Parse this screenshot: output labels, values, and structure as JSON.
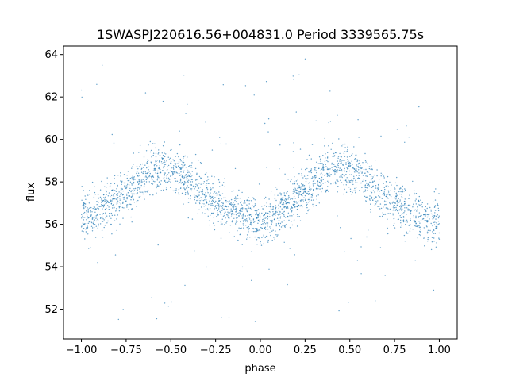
{
  "chart_data": {
    "type": "scatter",
    "title": "1SWASPJ220616.56+004831.0 Period 3339565.75s",
    "xlabel": "phase",
    "ylabel": "flux",
    "xlim": [
      -1.1,
      1.1
    ],
    "ylim": [
      50.6,
      64.4
    ],
    "xticks": [
      -1.0,
      -0.75,
      -0.5,
      -0.25,
      0.0,
      0.25,
      0.5,
      0.75,
      1.0
    ],
    "xtick_labels": [
      "−1.00",
      "−0.75",
      "−0.50",
      "−0.25",
      "0.00",
      "0.25",
      "0.50",
      "0.75",
      "1.00"
    ],
    "yticks": [
      52,
      54,
      56,
      58,
      60,
      62,
      64
    ],
    "ytick_labels": [
      "52",
      "54",
      "56",
      "58",
      "60",
      "62",
      "64"
    ],
    "grid": false,
    "marker_color": "#1f77b4",
    "series": [
      {
        "phase": [
          -1.0,
          -0.95,
          -0.9,
          -0.85,
          -0.8,
          -0.75,
          -0.7,
          -0.65,
          -0.6,
          -0.55,
          -0.5,
          -0.45,
          -0.4,
          -0.35,
          -0.3,
          -0.25,
          -0.2,
          -0.15,
          -0.1,
          -0.05,
          0.0,
          0.05,
          0.1,
          0.15,
          0.2,
          0.25,
          0.3,
          0.35,
          0.4,
          0.45,
          0.5,
          0.55,
          0.6,
          0.65,
          0.7,
          0.75,
          0.8,
          0.85,
          0.9,
          0.95,
          1.0
        ],
        "mean_flux": [
          56.3,
          56.4,
          56.6,
          56.9,
          57.2,
          57.5,
          57.9,
          58.3,
          58.5,
          58.7,
          58.6,
          58.4,
          58.0,
          57.6,
          57.3,
          57.0,
          56.8,
          56.6,
          56.4,
          56.2,
          56.2,
          56.3,
          56.6,
          56.9,
          57.2,
          57.5,
          57.9,
          58.3,
          58.5,
          58.7,
          58.6,
          58.4,
          58.0,
          57.6,
          57.3,
          57.0,
          56.8,
          56.6,
          56.4,
          56.2,
          56.3
        ],
        "scatter_halfwidth": 1.0
      }
    ]
  }
}
